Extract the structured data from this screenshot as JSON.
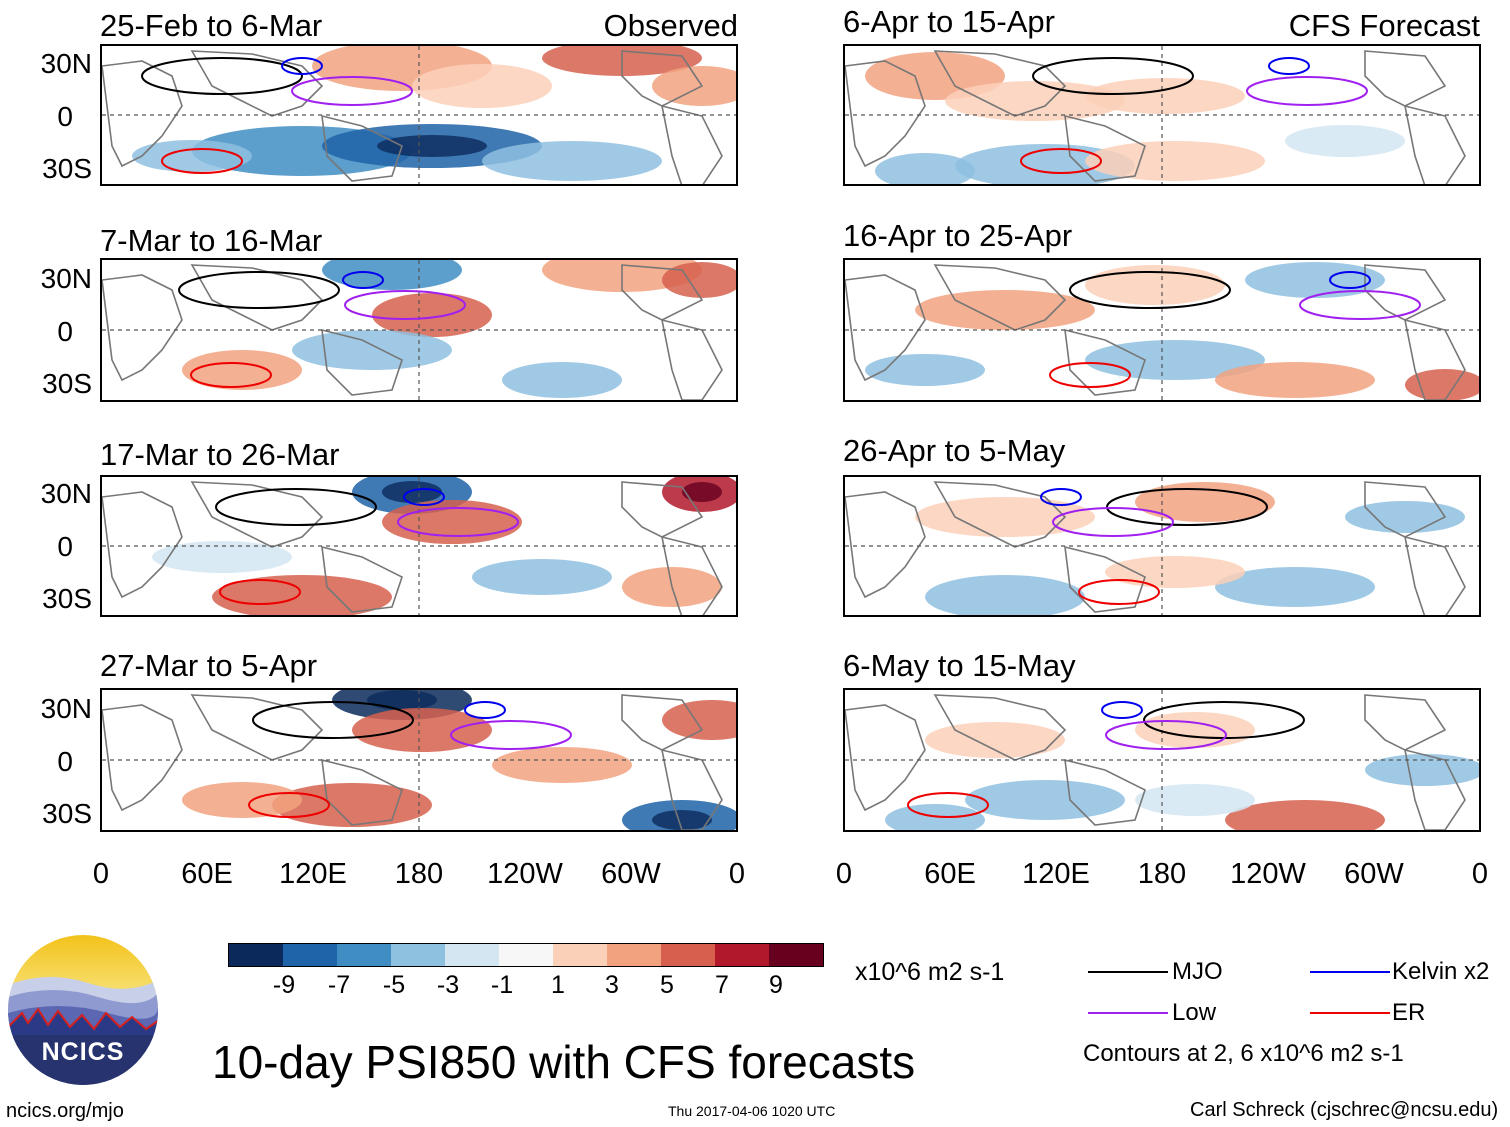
{
  "figure": {
    "title": "10-day PSI850 with CFS forecasts",
    "url": "ncics.org/mjo",
    "timestamp": "Thu 2017-04-06 1020 UTC",
    "author": "Carl Schreck (cjschrec@ncsu.edu)"
  },
  "columns": {
    "left_tag": "Observed",
    "right_tag": "CFS Forecast"
  },
  "panels_left": [
    {
      "title": "25-Feb to 6-Mar"
    },
    {
      "title": "7-Mar to 16-Mar"
    },
    {
      "title": "17-Mar to 26-Mar"
    },
    {
      "title": "27-Mar to 5-Apr"
    }
  ],
  "panels_right": [
    {
      "title": "6-Apr to 15-Apr"
    },
    {
      "title": "16-Apr to 25-Apr"
    },
    {
      "title": "26-Apr to 5-May"
    },
    {
      "title": "6-May to 15-May"
    }
  ],
  "lat_labels": [
    "30N",
    "0",
    "30S"
  ],
  "lon_labels": [
    "0",
    "60E",
    "120E",
    "180",
    "120W",
    "60W",
    "0"
  ],
  "colorbar": {
    "unit": "x10^6 m2 s-1",
    "ticks": [
      "-9",
      "-7",
      "-5",
      "-3",
      "-1",
      "1",
      "3",
      "5",
      "7",
      "9"
    ],
    "colors": [
      "#0b2a5b",
      "#1f63a8",
      "#3f8dc3",
      "#8ec0df",
      "#d3e6f2",
      "#f7f7f7",
      "#fbd0b9",
      "#f2a27f",
      "#d6604d",
      "#b2182b",
      "#67001f"
    ]
  },
  "legend": {
    "items": [
      {
        "label": "MJO",
        "color": "#000000"
      },
      {
        "label": "Kelvin x2",
        "color": "#0000ee"
      },
      {
        "label": "Low",
        "color": "#a020f0"
      },
      {
        "label": "ER",
        "color": "#ee0000"
      }
    ],
    "note": "Contours at 2, 6 x10^6 m2 s-1"
  },
  "logo": {
    "text": "NCICS"
  }
}
